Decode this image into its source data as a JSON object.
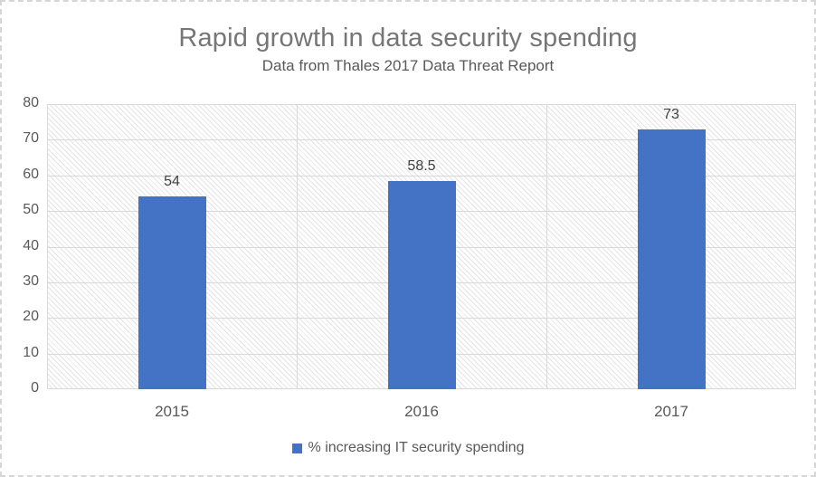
{
  "chart_data": {
    "type": "bar",
    "title": "Rapid growth in data security spending",
    "subtitle": "Data from Thales 2017 Data Threat Report",
    "categories": [
      "2015",
      "2016",
      "2017"
    ],
    "series": [
      {
        "name": "% increasing IT security spending",
        "values": [
          54,
          58.5,
          73
        ],
        "labels": [
          "54",
          "58.5",
          "73"
        ],
        "color": "#4472c4"
      }
    ],
    "xlabel": "",
    "ylabel": "",
    "ylim": [
      0,
      80
    ],
    "yticks": [
      0,
      10,
      20,
      30,
      40,
      50,
      60,
      70,
      80
    ],
    "grid": "horizontal major + vertical category boundaries",
    "plot_fill": "light diagonal hatch pattern",
    "legend_position": "bottom"
  },
  "legend": {
    "items": [
      {
        "label": "% increasing IT security spending",
        "color": "#4472c4"
      }
    ]
  },
  "colors": {
    "bar": "#4472c4",
    "gridline": "#d9d9d9",
    "plot_hatch": "#e4e4e4",
    "title_text": "#767676",
    "subtitle_text": "#595959",
    "axis_text": "#595959",
    "data_label_text": "#404040",
    "canvas_border": "#d6d6d6"
  }
}
